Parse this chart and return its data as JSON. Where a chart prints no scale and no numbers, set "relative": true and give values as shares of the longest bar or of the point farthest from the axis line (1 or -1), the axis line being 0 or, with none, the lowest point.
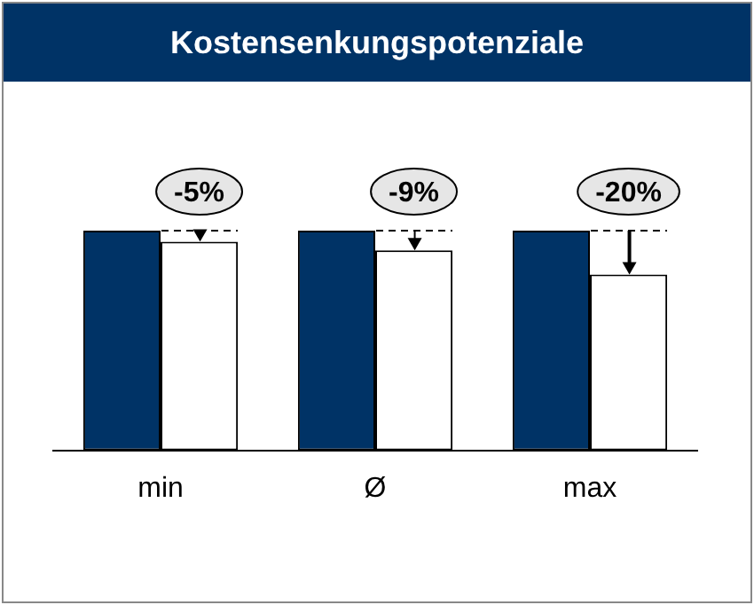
{
  "chart_data": {
    "type": "bar",
    "title": "Kostensenkungspotenziale",
    "relative": true,
    "legend": false,
    "categories": [
      "min",
      "Ø",
      "max"
    ],
    "series": [
      {
        "color": "#003366",
        "values": [
          1,
          1,
          1
        ]
      },
      {
        "color": "#ffffff",
        "values": [
          0.95,
          0.91,
          0.8
        ]
      }
    ],
    "annotations": [
      "-5%",
      "-9%",
      "-20%"
    ]
  }
}
